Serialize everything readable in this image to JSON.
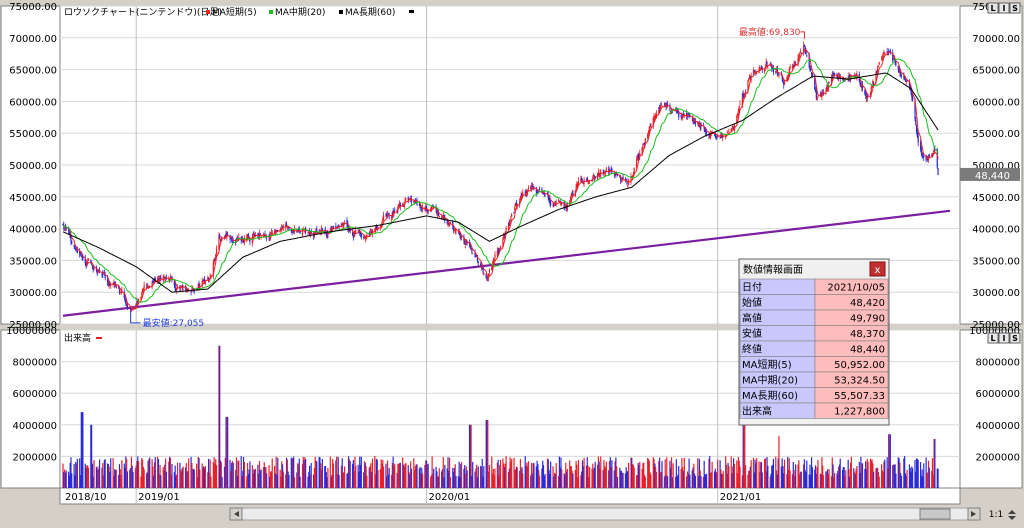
{
  "colors": {
    "up": "#e8202a",
    "down": "#2a2ad8",
    "ma_short": "#ee2020",
    "ma_mid": "#18c018",
    "ma_long": "#000000",
    "trendline": "#7a1fa2",
    "vol_legend": "#e02020",
    "price_label_bg": "#7b7b7b"
  },
  "chart_data": [
    {
      "type": "candlestick",
      "title": "ロウソクチャート(ニンテンドウ)(日足)",
      "legend": [
        {
          "label": "MA短期(5)",
          "color": "#ee2020"
        },
        {
          "label": "MA中期(20)",
          "color": "#18c018"
        },
        {
          "label": "MA長期(60)",
          "color": "#000000"
        }
      ],
      "ylim": [
        25000,
        75000
      ],
      "yticks": [
        "25000.00",
        "30000.00",
        "35000.00",
        "40000.00",
        "45000.00",
        "50000.00",
        "55000.00",
        "60000.00",
        "65000.00",
        "70000.00",
        "75000.00"
      ],
      "x_range": [
        "2018/10",
        "2021/10"
      ],
      "xticks": [
        "2018/10",
        "2019/01",
        "2020/01",
        "2021/01"
      ],
      "current_price": "48,440",
      "high_annotation": "最高値:69,830",
      "low_annotation": "最安値:27,055",
      "close_path": [
        [
          "2018-10-01",
          40500
        ],
        [
          "2018-10-20",
          36500
        ],
        [
          "2018-11-10",
          34000
        ],
        [
          "2018-12-05",
          31000
        ],
        [
          "2018-12-25",
          27500
        ],
        [
          "2019-01-10",
          30500
        ],
        [
          "2019-02-05",
          32500
        ],
        [
          "2019-02-25",
          30000
        ],
        [
          "2019-03-20",
          31000
        ],
        [
          "2019-04-05",
          32500
        ],
        [
          "2019-04-15",
          38500
        ],
        [
          "2019-05-01",
          38000
        ],
        [
          "2019-06-01",
          39000
        ],
        [
          "2019-07-15",
          40000
        ],
        [
          "2019-08-15",
          39500
        ],
        [
          "2019-09-15",
          41000
        ],
        [
          "2019-10-15",
          38000
        ],
        [
          "2019-11-15",
          42500
        ],
        [
          "2019-12-10",
          44000
        ],
        [
          "2020-01-10",
          42500
        ],
        [
          "2020-02-05",
          40500
        ],
        [
          "2020-02-25",
          37000
        ],
        [
          "2020-03-17",
          32500
        ],
        [
          "2020-04-05",
          38500
        ],
        [
          "2020-04-25",
          44000
        ],
        [
          "2020-05-15",
          46500
        ],
        [
          "2020-06-05",
          44500
        ],
        [
          "2020-06-25",
          43500
        ],
        [
          "2020-07-15",
          47500
        ],
        [
          "2020-08-15",
          49500
        ],
        [
          "2020-09-10",
          47000
        ],
        [
          "2020-10-05",
          55000
        ],
        [
          "2020-10-25",
          59500
        ],
        [
          "2020-11-20",
          57000
        ],
        [
          "2020-12-20",
          55500
        ],
        [
          "2021-01-05",
          54000
        ],
        [
          "2021-01-20",
          55500
        ],
        [
          "2021-02-10",
          64000
        ],
        [
          "2021-03-05",
          66500
        ],
        [
          "2021-03-25",
          63500
        ],
        [
          "2021-04-10",
          65500
        ],
        [
          "2021-04-20",
          69000
        ],
        [
          "2021-05-05",
          60500
        ],
        [
          "2021-05-25",
          63500
        ],
        [
          "2021-06-15",
          64500
        ],
        [
          "2021-07-10",
          61000
        ],
        [
          "2021-07-25",
          66500
        ],
        [
          "2021-08-05",
          68000
        ],
        [
          "2021-08-15",
          65500
        ],
        [
          "2021-08-30",
          63000
        ],
        [
          "2021-09-10",
          53000
        ],
        [
          "2021-09-20",
          51500
        ],
        [
          "2021-10-01",
          52500
        ],
        [
          "2021-10-05",
          48440
        ]
      ],
      "ma_long_path": [
        [
          "2018-10-01",
          39500
        ],
        [
          "2018-11-15",
          37000
        ],
        [
          "2019-01-01",
          34000
        ],
        [
          "2019-02-15",
          30000
        ],
        [
          "2019-04-01",
          30500
        ],
        [
          "2019-05-15",
          35500
        ],
        [
          "2019-07-01",
          38000
        ],
        [
          "2019-09-01",
          39500
        ],
        [
          "2019-11-01",
          40500
        ],
        [
          "2020-01-01",
          42000
        ],
        [
          "2020-02-10",
          41000
        ],
        [
          "2020-03-20",
          38000
        ],
        [
          "2020-05-01",
          40500
        ],
        [
          "2020-06-15",
          43000
        ],
        [
          "2020-08-01",
          45000
        ],
        [
          "2020-09-15",
          46500
        ],
        [
          "2020-11-01",
          51500
        ],
        [
          "2020-12-15",
          54500
        ],
        [
          "2021-02-01",
          57000
        ],
        [
          "2021-03-15",
          60500
        ],
        [
          "2021-05-01",
          64000
        ],
        [
          "2021-06-15",
          63500
        ],
        [
          "2021-08-01",
          64500
        ],
        [
          "2021-09-01",
          62000
        ],
        [
          "2021-10-05",
          55500
        ]
      ],
      "trendline": [
        [
          "2018-10-01",
          26300
        ],
        [
          "2021-10-20",
          42800
        ]
      ],
      "high_point": [
        "2021-04-20",
        69830
      ],
      "low_point": [
        "2018-12-25",
        27055
      ]
    },
    {
      "type": "bar",
      "title": "出来高",
      "ylim": [
        0,
        10000000
      ],
      "yticks": [
        "2000000",
        "4000000",
        "6000000",
        "8000000",
        "10000000"
      ],
      "typical_volume": 1500000,
      "spikes": [
        [
          "2018-10-25",
          4800000
        ],
        [
          "2018-11-05",
          4000000
        ],
        [
          "2019-04-15",
          9000000
        ],
        [
          "2019-04-25",
          4500000
        ],
        [
          "2020-02-25",
          4000000
        ],
        [
          "2020-03-17",
          4300000
        ],
        [
          "2021-02-03",
          4400000
        ],
        [
          "2021-03-20",
          3300000
        ],
        [
          "2021-08-05",
          3400000
        ],
        [
          "2021-10-01",
          3100000
        ],
        [
          "2021-10-05",
          1227800
        ]
      ]
    }
  ],
  "info_panel": {
    "title": "数値情報画面",
    "close_label": "x",
    "rows": [
      {
        "label": "日付",
        "value": "2021/10/05"
      },
      {
        "label": "始値",
        "value": "48,420"
      },
      {
        "label": "高値",
        "value": "49,790"
      },
      {
        "label": "安値",
        "value": "48,370"
      },
      {
        "label": "終値",
        "value": "48,440"
      },
      {
        "label": "MA短期(5)",
        "value": "50,952.00"
      },
      {
        "label": "MA中期(20)",
        "value": "53,324.50"
      },
      {
        "label": "MA長期(60)",
        "value": "55,507.33"
      },
      {
        "label": "出来高",
        "value": "1,227,800"
      }
    ]
  },
  "toolbar": {
    "scale_buttons": [
      "L",
      "I",
      "S"
    ],
    "zoom_label": "1:1"
  }
}
